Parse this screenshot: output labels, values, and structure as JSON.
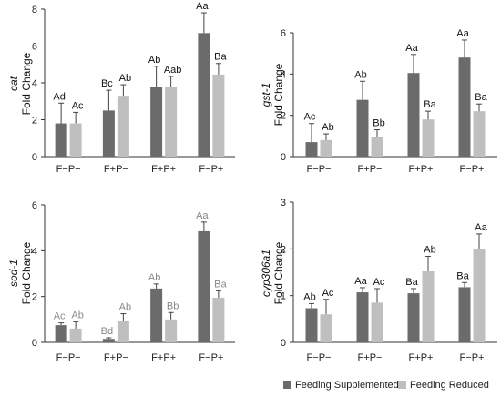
{
  "chart_data": [
    {
      "type": "bar",
      "gene": "cat",
      "ylabel": "Fold Change",
      "ylim": [
        0,
        8
      ],
      "yticks": [
        0,
        2,
        4,
        6,
        8
      ],
      "categories": [
        "F−P−",
        "F+P−",
        "F+P+",
        "F−P+"
      ],
      "series": [
        {
          "name": "Feeding Supplemented",
          "values": [
            1.8,
            2.5,
            3.8,
            6.7
          ],
          "errors": [
            1.1,
            1.1,
            1.1,
            1.1
          ],
          "labels": [
            "Ad",
            "Bc",
            "Ab",
            "Aa"
          ]
        },
        {
          "name": "Feeding Reduced",
          "values": [
            1.8,
            3.3,
            3.8,
            4.45
          ],
          "errors": [
            0.6,
            0.6,
            0.55,
            0.6
          ],
          "labels": [
            "Ac",
            "Ab",
            "Aab",
            "Ba"
          ]
        }
      ],
      "label_colors": [
        "#111111",
        "#111111",
        "#111111",
        "#111111"
      ]
    },
    {
      "type": "bar",
      "gene": "gst-1",
      "ylabel": "Fold Change",
      "ylim": [
        0,
        6
      ],
      "yticks": [
        0,
        2,
        4,
        6
      ],
      "categories": [
        "F−P−",
        "F+P−",
        "F+P+",
        "F−P+"
      ],
      "series": [
        {
          "name": "Feeding Supplemented",
          "values": [
            0.7,
            2.75,
            4.05,
            4.8
          ],
          "errors": [
            0.9,
            0.9,
            0.9,
            0.85
          ],
          "labels": [
            "Ac",
            "Ab",
            "Aa",
            "Aa"
          ]
        },
        {
          "name": "Feeding Reduced",
          "values": [
            0.8,
            0.95,
            1.8,
            2.2
          ],
          "errors": [
            0.3,
            0.35,
            0.4,
            0.35
          ],
          "labels": [
            "Ab",
            "Bb",
            "Ba",
            "Ba"
          ]
        }
      ],
      "label_colors": [
        "#111111",
        "#111111",
        "#111111",
        "#111111"
      ]
    },
    {
      "type": "bar",
      "gene": "sod-1",
      "ylabel": "Fold Change",
      "ylim": [
        0,
        6
      ],
      "yticks": [
        0,
        2,
        4,
        6
      ],
      "categories": [
        "F−P−",
        "F+P−",
        "F+P+",
        "F−P+"
      ],
      "series": [
        {
          "name": "Feeding Supplemented",
          "values": [
            0.75,
            0.15,
            2.35,
            4.85
          ],
          "errors": [
            0.1,
            0.05,
            0.2,
            0.4
          ],
          "labels": [
            "Ac",
            "Bd",
            "Ab",
            "Aa"
          ]
        },
        {
          "name": "Feeding Reduced",
          "values": [
            0.6,
            0.95,
            1.0,
            1.95
          ],
          "errors": [
            0.3,
            0.3,
            0.3,
            0.3
          ],
          "labels": [
            "Ab",
            "Ab",
            "Bb",
            "Ba"
          ]
        }
      ],
      "label_colors": [
        "#888888",
        "#888888",
        "#888888",
        "#888888"
      ]
    },
    {
      "type": "bar",
      "gene": "cyp306a1",
      "ylabel": "Fold Change",
      "ylim": [
        0,
        3
      ],
      "yticks": [
        0,
        1,
        2,
        3
      ],
      "categories": [
        "F−P−",
        "F+P−",
        "F+P+",
        "F−P+"
      ],
      "series": [
        {
          "name": "Feeding Supplemented",
          "values": [
            0.73,
            1.07,
            1.05,
            1.18
          ],
          "errors": [
            0.1,
            0.1,
            0.1,
            0.1
          ],
          "labels": [
            "Ab",
            "Aa",
            "Ba",
            "Ba"
          ]
        },
        {
          "name": "Feeding Reduced",
          "values": [
            0.6,
            0.85,
            1.52,
            2.0
          ],
          "errors": [
            0.32,
            0.3,
            0.32,
            0.32
          ],
          "labels": [
            "Ac",
            "Ac",
            "Ab",
            "Aa"
          ]
        }
      ],
      "label_colors": [
        "#111111",
        "#111111",
        "#111111",
        "#111111"
      ]
    }
  ],
  "legend": [
    {
      "label": "Feeding Supplemented",
      "color": "#6b6b6b"
    },
    {
      "label": "Feeding Reduced",
      "color": "#bfbfbf"
    }
  ],
  "colors": {
    "supplemented": "#6b6b6b",
    "reduced": "#bfbfbf",
    "error_bar": "#444444",
    "axis": "#333333"
  }
}
